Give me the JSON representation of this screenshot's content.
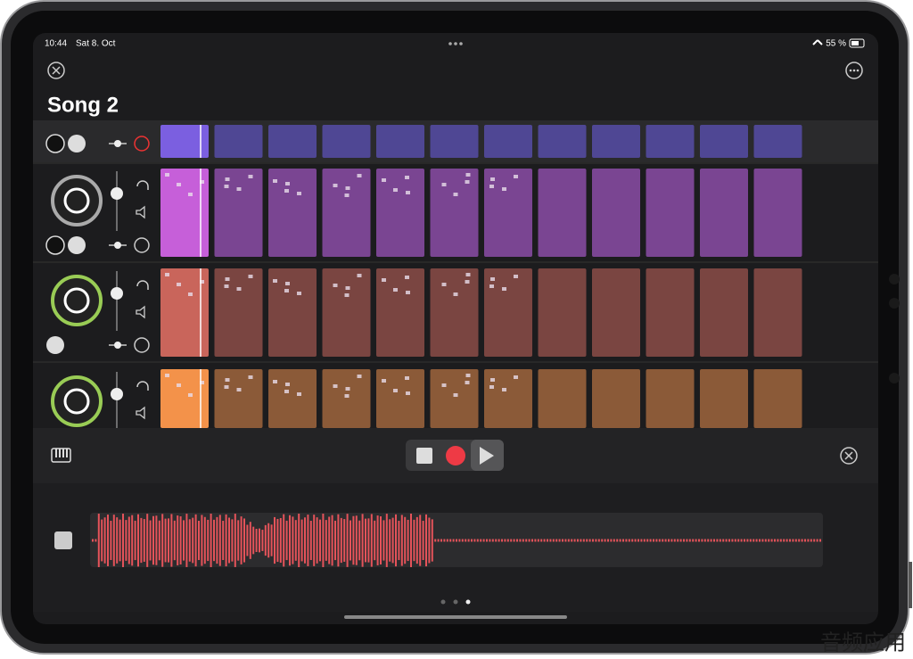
{
  "status_bar": {
    "time": "10:44",
    "date": "Sat 8. Oct",
    "battery": "55 %"
  },
  "header": {
    "title": "Song 2"
  },
  "watermark": "音频应用"
}
